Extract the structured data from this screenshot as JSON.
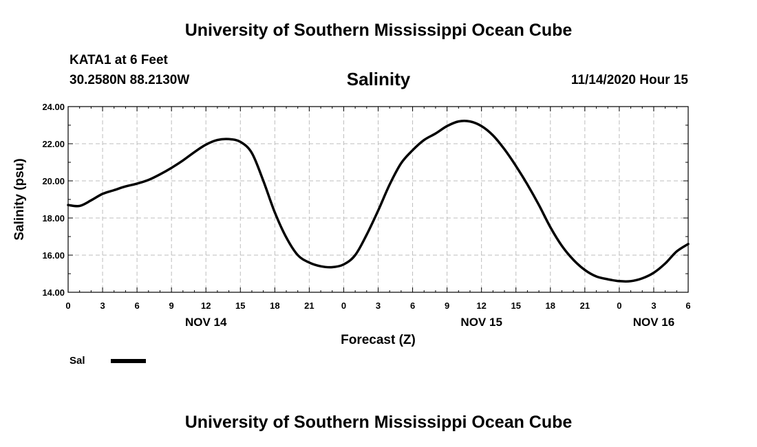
{
  "header": {
    "title": "University of Southern Mississippi Ocean Cube",
    "station": "KATA1 at 6 Feet",
    "coords": "30.2580N 88.2130W",
    "variable": "Salinity",
    "timestamp": "11/14/2020 Hour 15"
  },
  "footer": {
    "title": "University of Southern Mississippi Ocean Cube"
  },
  "chart_data": {
    "type": "line",
    "title": "Salinity",
    "xlabel": "Forecast (Z)",
    "ylabel": "Salinity (psu)",
    "ylim": [
      14,
      24
    ],
    "yticks": [
      "14.00",
      "16.00",
      "18.00",
      "20.00",
      "22.00",
      "24.00"
    ],
    "xlim": [
      0,
      54
    ],
    "xticks": [
      "0",
      "3",
      "6",
      "9",
      "12",
      "15",
      "18",
      "21",
      "0",
      "3",
      "6",
      "9",
      "12",
      "15",
      "18",
      "21",
      "0",
      "3",
      "6"
    ],
    "day_labels": [
      {
        "label": "NOV 14",
        "hour": 12
      },
      {
        "label": "NOV 15",
        "hour": 36
      },
      {
        "label": "NOV 16",
        "hour": 51
      }
    ],
    "grid": true,
    "legend": {
      "position": "bottom-left",
      "entries": [
        {
          "name": "Sal",
          "color": "#000000"
        }
      ]
    },
    "series": [
      {
        "name": "Sal",
        "color": "#000000",
        "x": [
          0,
          1,
          2,
          3,
          4,
          5,
          6,
          7,
          8,
          9,
          10,
          11,
          12,
          13,
          14,
          15,
          16,
          17,
          18,
          19,
          20,
          21,
          22,
          23,
          24,
          25,
          26,
          27,
          28,
          29,
          30,
          31,
          32,
          33,
          34,
          35,
          36,
          37,
          38,
          39,
          40,
          41,
          42,
          43,
          44,
          45,
          46,
          47,
          48,
          49,
          50,
          51,
          52,
          53,
          54
        ],
        "values": [
          18.7,
          18.65,
          18.95,
          19.3,
          19.5,
          19.7,
          19.85,
          20.05,
          20.35,
          20.7,
          21.1,
          21.55,
          21.95,
          22.2,
          22.25,
          22.1,
          21.5,
          20.0,
          18.3,
          16.95,
          16.0,
          15.6,
          15.4,
          15.35,
          15.5,
          16.0,
          17.1,
          18.4,
          19.8,
          20.95,
          21.65,
          22.2,
          22.55,
          22.95,
          23.2,
          23.2,
          22.95,
          22.45,
          21.7,
          20.8,
          19.8,
          18.7,
          17.5,
          16.5,
          15.75,
          15.2,
          14.85,
          14.7,
          14.6,
          14.6,
          14.75,
          15.05,
          15.55,
          16.2,
          16.6
        ]
      }
    ]
  }
}
